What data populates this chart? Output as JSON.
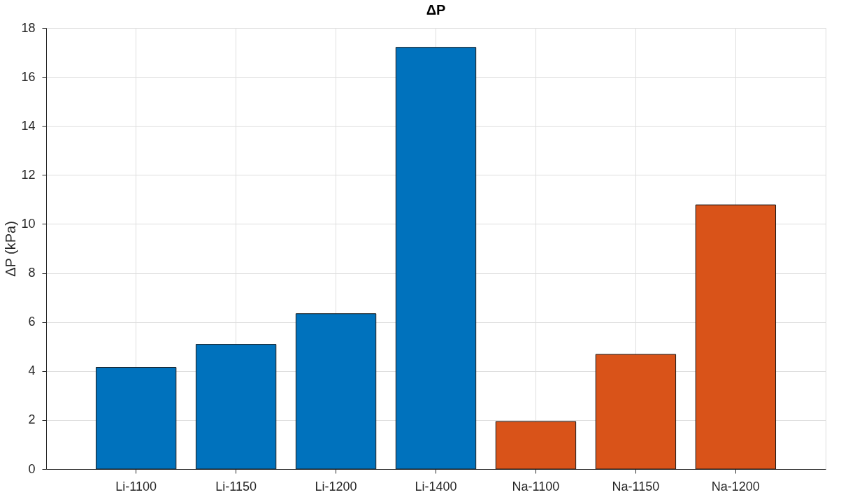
{
  "chart_data": {
    "type": "bar",
    "title": "ΔP",
    "ylabel": "ΔP (kPa)",
    "categories": [
      "Li-1100",
      "Li-1150",
      "Li-1200",
      "Li-1400",
      "Na-1100",
      "Na-1150",
      "Na-1200"
    ],
    "values": [
      4.15,
      5.09,
      6.34,
      17.21,
      1.94,
      4.68,
      10.78
    ],
    "colors": [
      "#0072bd",
      "#0072bd",
      "#0072bd",
      "#0072bd",
      "#d95319",
      "#d95319",
      "#d95319"
    ],
    "ylim": [
      0,
      18
    ],
    "yticks": [
      0,
      2,
      4,
      6,
      8,
      10,
      12,
      14,
      16,
      18
    ],
    "grid": true
  }
}
